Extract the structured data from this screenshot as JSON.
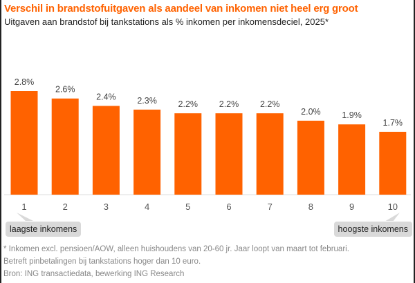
{
  "title": "Verschil in brandstofuitgaven als aandeel van inkomen niet heel erg groot",
  "subtitle": "Uitgaven aan brandstof bij tankstations als % inkomen per inkomensdeciel, 2025*",
  "colors": {
    "bar": "#ff6200",
    "title": "#ff6200"
  },
  "chart_data": {
    "type": "bar",
    "categories": [
      "1",
      "2",
      "3",
      "4",
      "5",
      "6",
      "7",
      "8",
      "9",
      "10"
    ],
    "values": [
      2.8,
      2.6,
      2.4,
      2.3,
      2.2,
      2.2,
      2.2,
      2.0,
      1.9,
      1.7
    ],
    "data_labels": [
      "2.8%",
      "2.6%",
      "2.4%",
      "2.3%",
      "2.2%",
      "2.2%",
      "2.2%",
      "2.0%",
      "1.9%",
      "1.7%"
    ],
    "ylim": [
      0,
      3.0
    ],
    "grid": false,
    "annotations": [
      "laagste inkomens",
      "hoogste inkomens"
    ]
  },
  "footnotes": [
    "* Inkomen excl. pensioen/AOW, alleen huishoudens van 20-60 jr. Jaar loopt van maart tot februari.",
    "Betreft pinbetalingen bij tankstations hoger dan 10 euro.",
    "Bron: ING transactiedata, bewerking ING Research"
  ]
}
